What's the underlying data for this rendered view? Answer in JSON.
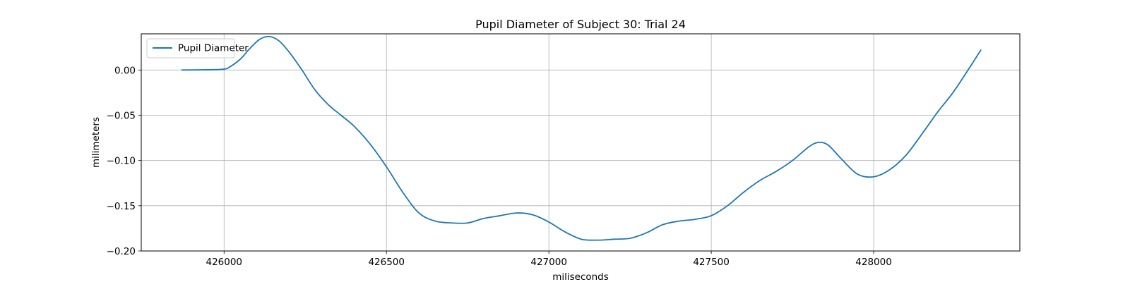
{
  "chart_data": {
    "type": "line",
    "title": "Pupil Diameter of Subject 30: Trial 24",
    "xlabel": "miliseconds",
    "ylabel": "milimeters",
    "xlim": [
      425745,
      428450
    ],
    "ylim": [
      -0.2,
      0.04
    ],
    "xticks": [
      426000,
      426500,
      427000,
      427500,
      428000
    ],
    "xtick_labels": [
      "426000",
      "426500",
      "427000",
      "427500",
      "428000"
    ],
    "yticks": [
      0.0,
      -0.05,
      -0.1,
      -0.15,
      -0.2
    ],
    "ytick_labels": [
      "0.00",
      "−0.05",
      "−0.10",
      "−0.15",
      "−0.20"
    ],
    "grid": true,
    "legend_position": "upper left",
    "series": [
      {
        "name": "Pupil Diameter",
        "color": "#1f77b4",
        "x": [
          425870,
          425950,
          426000,
          426020,
          426050,
          426080,
          426110,
          426140,
          426170,
          426200,
          426240,
          426280,
          426320,
          426360,
          426400,
          426450,
          426500,
          426550,
          426600,
          426650,
          426700,
          426750,
          426800,
          426850,
          426900,
          426950,
          427000,
          427050,
          427100,
          427150,
          427200,
          427250,
          427300,
          427350,
          427400,
          427450,
          427500,
          427550,
          427600,
          427650,
          427700,
          427750,
          427800,
          427830,
          427860,
          427900,
          427950,
          428000,
          428050,
          428100,
          428150,
          428200,
          428250,
          428330
        ],
        "y": [
          0.0,
          0.0003,
          0.001,
          0.004,
          0.012,
          0.024,
          0.034,
          0.037,
          0.032,
          0.02,
          0.0,
          -0.022,
          -0.038,
          -0.05,
          -0.062,
          -0.082,
          -0.107,
          -0.135,
          -0.158,
          -0.167,
          -0.169,
          -0.169,
          -0.164,
          -0.161,
          -0.158,
          -0.16,
          -0.168,
          -0.179,
          -0.187,
          -0.188,
          -0.187,
          -0.186,
          -0.18,
          -0.171,
          -0.167,
          -0.165,
          -0.161,
          -0.15,
          -0.135,
          -0.122,
          -0.112,
          -0.1,
          -0.085,
          -0.08,
          -0.083,
          -0.098,
          -0.115,
          -0.118,
          -0.11,
          -0.094,
          -0.07,
          -0.045,
          -0.022,
          0.022
        ]
      }
    ]
  }
}
